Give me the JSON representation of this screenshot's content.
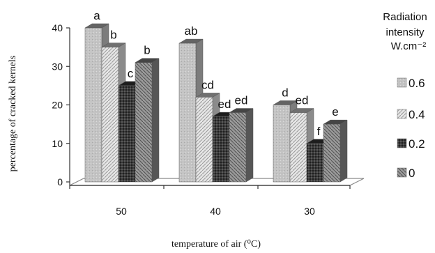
{
  "chart_data": {
    "type": "bar",
    "style": "3d-clustered",
    "xlabel": "temperature of air (⁰C)",
    "ylabel": "percentage of cracked kernels",
    "categories": [
      "50",
      "40",
      "30"
    ],
    "ylim": [
      0,
      40
    ],
    "yticks": [
      "0",
      "10",
      "20",
      "30",
      "40"
    ],
    "grid": false,
    "legend_title_lines": [
      "Radiation",
      "intensity",
      "W.cm⁻²"
    ],
    "legend_position": "right",
    "series": [
      {
        "name": "0.6",
        "values": [
          40,
          36,
          20
        ],
        "labels": [
          "a",
          "ab",
          "d"
        ],
        "color": "#c8c8c8"
      },
      {
        "name": "0.4",
        "values": [
          35,
          22,
          18
        ],
        "labels": [
          "b",
          "cd",
          "ed"
        ],
        "color": "#e0e0e0"
      },
      {
        "name": "0.2",
        "values": [
          25,
          17,
          10
        ],
        "labels": [
          "c",
          "ed",
          "f"
        ],
        "color": "#3a3a3a"
      },
      {
        "name": "0",
        "values": [
          31,
          18,
          15
        ],
        "labels": [
          "b",
          "ed",
          "e"
        ],
        "color": "#8a8a8a"
      }
    ]
  }
}
